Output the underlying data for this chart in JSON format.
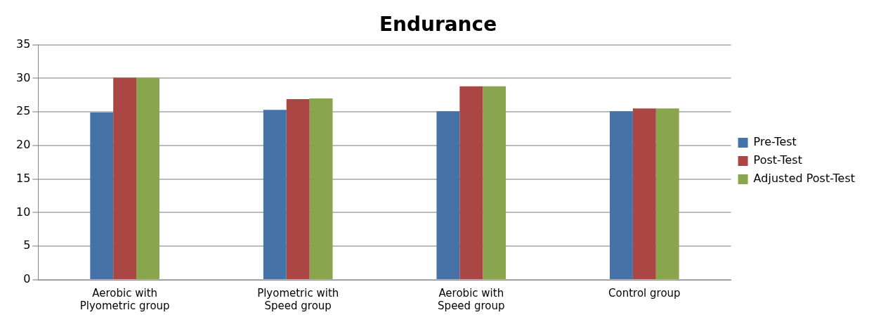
{
  "chart_data": {
    "type": "bar",
    "title": "Endurance",
    "categories": [
      "Aerobic with Plyometric group",
      "Plyometric with Speed group",
      "Aerobic with Speed group",
      "Control group"
    ],
    "series": [
      {
        "name": "Pre-Test",
        "color": "#4572a7",
        "values": [
          24.9,
          25.3,
          25.1,
          25.1
        ]
      },
      {
        "name": "Post-Test",
        "color": "#aa4643",
        "values": [
          30.1,
          26.9,
          28.8,
          25.5
        ]
      },
      {
        "name": "Adjusted Post-Test",
        "color": "#89a54e",
        "values": [
          30.1,
          27,
          28.8,
          25.5
        ]
      }
    ],
    "ylim": [
      0,
      35
    ],
    "yticks": [
      0,
      5,
      10,
      15,
      20,
      25,
      30,
      35
    ],
    "grid": "y",
    "legend": "right"
  }
}
